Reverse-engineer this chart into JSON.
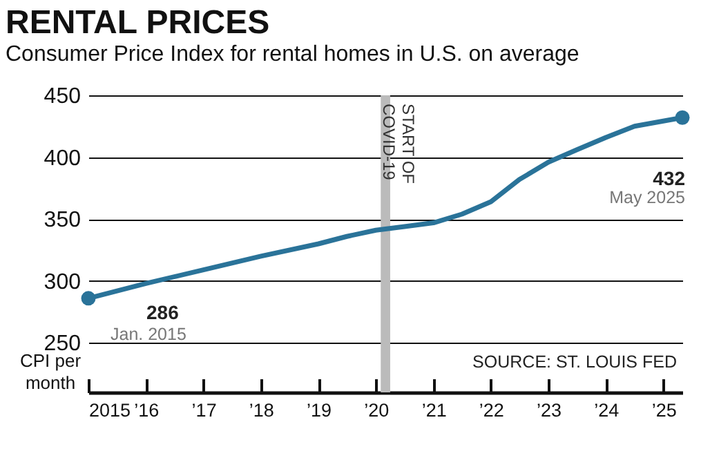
{
  "chart_data": {
    "type": "line",
    "title": "RENTAL PRICES",
    "subtitle": "Consumer Price Index for rental homes in U.S. on average",
    "ylabel": "CPI per month",
    "x": [
      "2015-01",
      "2016-01",
      "2017-01",
      "2018-01",
      "2019-01",
      "2019-07",
      "2020-01",
      "2020-07",
      "2021-01",
      "2021-07",
      "2022-01",
      "2022-07",
      "2023-01",
      "2023-07",
      "2024-01",
      "2024-07",
      "2025-05"
    ],
    "series": [
      {
        "color": "#2a7399",
        "values": [
          286,
          298,
          309,
          320,
          330,
          336,
          341,
          344,
          347,
          354,
          364,
          382,
          396,
          406,
          416,
          425,
          432
        ]
      }
    ],
    "xlim": [
      "2015-01",
      "2025-05"
    ],
    "xticks": [
      {
        "value": "2015-01",
        "label": "2015"
      },
      {
        "value": "2016-01",
        "label": "’16"
      },
      {
        "value": "2017-01",
        "label": "’17"
      },
      {
        "value": "2018-01",
        "label": "’18"
      },
      {
        "value": "2019-01",
        "label": "’19"
      },
      {
        "value": "2020-01",
        "label": "’20"
      },
      {
        "value": "2021-01",
        "label": "’21"
      },
      {
        "value": "2022-01",
        "label": "’22"
      },
      {
        "value": "2023-01",
        "label": "’23"
      },
      {
        "value": "2024-01",
        "label": "’24"
      },
      {
        "value": "2025-01",
        "label": "’25"
      }
    ],
    "ylim": [
      210,
      450
    ],
    "yticks": [
      250,
      300,
      350,
      400,
      450
    ],
    "grid": "y",
    "bands": [
      {
        "axis": "x",
        "from": "2020-02",
        "to": "2020-04",
        "label": "START OF COVID-19",
        "color": "#bbbbbb"
      }
    ],
    "annotations": [
      {
        "text": "286",
        "x": "2015-01",
        "y": 286
      },
      "Jan. 2015",
      {
        "text": "432",
        "x": "2025-05",
        "y": 432
      },
      "May 2025",
      "SOURCE: ST. LOUIS FED"
    ]
  }
}
